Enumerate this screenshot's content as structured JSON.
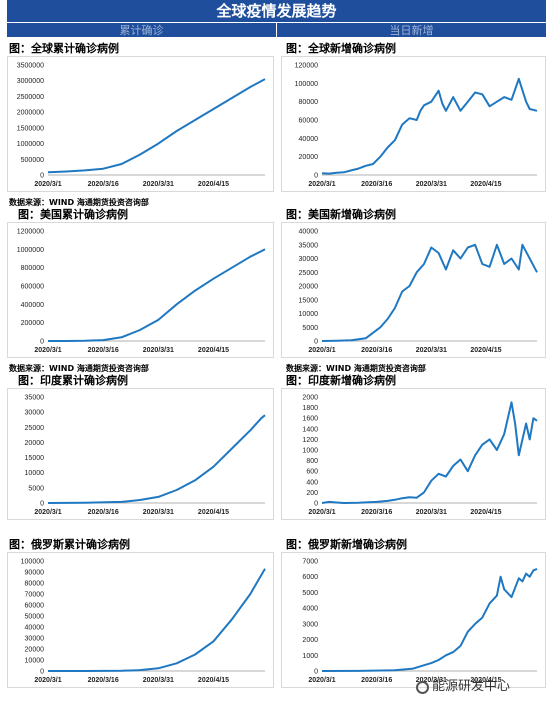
{
  "page": {
    "title": "全球疫情发展趋势",
    "col_left": "累计确诊",
    "col_right": "当日新增",
    "watermark": "能源研发中心"
  },
  "sources": [
    "数据来源：WIND  海通期货投资咨询部",
    "数据来源：WIND  海通期货投资咨询部",
    "数据来源：WIND  海通期货投资咨询部",
    "数据来源：WIND  海通期货投资咨询部"
  ],
  "colors": {
    "line": "#1f78c1",
    "header": "#1f4e9c"
  },
  "chart_data": [
    {
      "id": "global-cumulative",
      "type": "line",
      "title": "图：全球累计确诊病例",
      "x_ticks": [
        "2020/3/1",
        "2020/3/16",
        "2020/3/31",
        "2020/4/15"
      ],
      "y_ticks": [
        "0",
        "500000",
        "1000000",
        "1500000",
        "2000000",
        "2500000",
        "3000000",
        "3500000"
      ],
      "ylim": [
        0,
        3500000
      ],
      "x_range": [
        0,
        59
      ],
      "x": [
        0,
        5,
        10,
        15,
        20,
        25,
        30,
        35,
        40,
        45,
        50,
        55,
        59
      ],
      "values": [
        88000,
        110000,
        145000,
        200000,
        350000,
        650000,
        1000000,
        1400000,
        1750000,
        2100000,
        2450000,
        2800000,
        3050000
      ]
    },
    {
      "id": "global-daily",
      "type": "line",
      "title": "图：全球新增确诊病例",
      "x_ticks": [
        "2020/3/1",
        "2020/3/16",
        "2020/3/31",
        "2020/4/15"
      ],
      "y_ticks": [
        "0",
        "20000",
        "40000",
        "60000",
        "80000",
        "100000",
        "120000"
      ],
      "ylim": [
        0,
        120000
      ],
      "x_range": [
        0,
        59
      ],
      "x": [
        0,
        2,
        4,
        6,
        8,
        10,
        12,
        14,
        16,
        18,
        20,
        22,
        24,
        26,
        27,
        28,
        30,
        32,
        33,
        34,
        36,
        38,
        40,
        42,
        44,
        46,
        48,
        50,
        52,
        54,
        56,
        57,
        59
      ],
      "values": [
        2000,
        1500,
        2500,
        3000,
        5000,
        7000,
        10000,
        12000,
        20000,
        30000,
        38000,
        55000,
        62000,
        60000,
        70000,
        76000,
        80000,
        92000,
        78000,
        70000,
        85000,
        70000,
        80000,
        90000,
        88000,
        75000,
        80000,
        85000,
        82000,
        105000,
        80000,
        72000,
        70000
      ]
    },
    {
      "id": "us-cumulative",
      "type": "line",
      "title": "图：美国累计确诊病例",
      "x_ticks": [
        "2020/3/1",
        "2020/3/16",
        "2020/3/31",
        "2020/4/15"
      ],
      "y_ticks": [
        "0",
        "200000",
        "400000",
        "600000",
        "800000",
        "1000000",
        "1200000"
      ],
      "ylim": [
        0,
        1200000
      ],
      "x_range": [
        0,
        59
      ],
      "x": [
        0,
        5,
        10,
        15,
        20,
        25,
        30,
        35,
        40,
        45,
        50,
        55,
        59
      ],
      "values": [
        0,
        200,
        2000,
        10000,
        40000,
        120000,
        230000,
        400000,
        550000,
        680000,
        800000,
        920000,
        1000000
      ]
    },
    {
      "id": "us-daily",
      "type": "line",
      "title": "图：美国新增确诊病例",
      "x_ticks": [
        "2020/3/1",
        "2020/3/16",
        "2020/3/31",
        "2020/4/15"
      ],
      "y_ticks": [
        "0",
        "5000",
        "10000",
        "15000",
        "20000",
        "25000",
        "30000",
        "35000",
        "40000"
      ],
      "ylim": [
        0,
        40000
      ],
      "x_range": [
        0,
        59
      ],
      "x": [
        0,
        4,
        8,
        12,
        14,
        16,
        18,
        20,
        22,
        24,
        26,
        28,
        30,
        32,
        34,
        36,
        38,
        40,
        42,
        44,
        46,
        48,
        50,
        52,
        54,
        55,
        57,
        59
      ],
      "values": [
        0,
        100,
        300,
        1000,
        3000,
        5000,
        8000,
        12000,
        18000,
        20000,
        25000,
        28000,
        34000,
        32000,
        26000,
        33000,
        30000,
        34000,
        35000,
        28000,
        27000,
        35000,
        28000,
        30000,
        26000,
        35000,
        30000,
        25000
      ]
    },
    {
      "id": "india-cumulative",
      "type": "line",
      "title": "图：印度累计确诊病例",
      "x_ticks": [
        "2020/3/1",
        "2020/3/16",
        "2020/3/31",
        "2020/4/15"
      ],
      "y_ticks": [
        "0",
        "5000",
        "10000",
        "15000",
        "20000",
        "25000",
        "30000",
        "35000"
      ],
      "ylim": [
        0,
        35000
      ],
      "x_range": [
        0,
        59
      ],
      "x": [
        0,
        10,
        20,
        25,
        30,
        35,
        40,
        45,
        50,
        55,
        58,
        59
      ],
      "values": [
        3,
        60,
        350,
        1000,
        2000,
        4300,
        7500,
        12000,
        18000,
        24000,
        28000,
        29000
      ]
    },
    {
      "id": "india-daily",
      "type": "line",
      "title": "图：印度新增确诊病例",
      "x_ticks": [
        "2020/3/1",
        "2020/3/16",
        "2020/3/31",
        "2020/4/15"
      ],
      "y_ticks": [
        "0",
        "200",
        "400",
        "600",
        "800",
        "1000",
        "1200",
        "1400",
        "1600",
        "1800",
        "2000"
      ],
      "ylim": [
        0,
        2000
      ],
      "x_range": [
        0,
        59
      ],
      "x": [
        0,
        2,
        4,
        6,
        10,
        15,
        18,
        20,
        22,
        24,
        26,
        28,
        30,
        32,
        34,
        36,
        38,
        40,
        42,
        44,
        46,
        48,
        50,
        52,
        53,
        54,
        56,
        57,
        58,
        59
      ],
      "values": [
        0,
        20,
        10,
        0,
        5,
        20,
        40,
        60,
        90,
        110,
        100,
        200,
        420,
        550,
        500,
        700,
        820,
        600,
        900,
        1100,
        1200,
        1000,
        1300,
        1900,
        1500,
        900,
        1500,
        1200,
        1600,
        1550
      ]
    },
    {
      "id": "russia-cumulative",
      "type": "line",
      "title": "图：俄罗斯累计确诊病例",
      "x_ticks": [
        "2020/3/1",
        "2020/3/16",
        "2020/3/31",
        "2020/4/15"
      ],
      "y_ticks": [
        "0",
        "10000",
        "20000",
        "30000",
        "40000",
        "50000",
        "60000",
        "70000",
        "80000",
        "90000",
        "100000"
      ],
      "ylim": [
        0,
        100000
      ],
      "x_range": [
        0,
        59
      ],
      "x": [
        0,
        10,
        20,
        25,
        30,
        35,
        40,
        45,
        50,
        55,
        59
      ],
      "values": [
        0,
        20,
        150,
        800,
        2500,
        7000,
        15000,
        27000,
        47000,
        70000,
        93000
      ]
    },
    {
      "id": "russia-daily",
      "type": "line",
      "title": "图：俄罗斯新增确诊病例",
      "x_ticks": [
        "2020/3/1",
        "2020/3/16",
        "2020/3/31",
        "2020/4/15"
      ],
      "y_ticks": [
        "0",
        "1000",
        "2000",
        "3000",
        "4000",
        "5000",
        "6000",
        "7000"
      ],
      "ylim": [
        0,
        7000
      ],
      "x_range": [
        0,
        59
      ],
      "x": [
        0,
        10,
        20,
        25,
        30,
        32,
        34,
        36,
        38,
        40,
        42,
        44,
        46,
        48,
        49,
        50,
        52,
        54,
        55,
        56,
        57,
        58,
        59
      ],
      "values": [
        0,
        5,
        50,
        150,
        500,
        700,
        1000,
        1200,
        1600,
        2500,
        3000,
        3400,
        4300,
        4800,
        6000,
        5200,
        4700,
        5900,
        5700,
        6200,
        6000,
        6400,
        6500
      ]
    }
  ]
}
